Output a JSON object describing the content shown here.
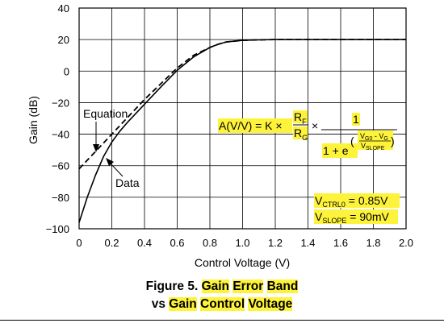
{
  "chart_data": {
    "type": "line",
    "xlabel": "Control Voltage (V)",
    "ylabel": "Gain (dB)",
    "xlim": [
      0,
      2.0
    ],
    "ylim": [
      -100,
      40
    ],
    "xticks": [
      "0",
      "0.2",
      "0.4",
      "0.6",
      "0.8",
      "1.0",
      "1.2",
      "1.4",
      "1.6",
      "1.8",
      "2.0"
    ],
    "yticks": [
      "40",
      "20",
      "0",
      "−20",
      "−40",
      "−60",
      "−80",
      "−100"
    ],
    "grid": true,
    "series": [
      {
        "name": "Equation",
        "style": "dashed",
        "x": [
          0,
          0.1,
          0.2,
          0.3,
          0.4,
          0.5,
          0.6,
          0.7,
          0.8,
          0.85,
          0.9,
          1.0,
          1.1,
          1.2,
          1.3,
          1.5,
          2.0
        ],
        "y": [
          -62,
          -51,
          -40,
          -29,
          -18,
          -8,
          2,
          10,
          15,
          17,
          18.5,
          19.5,
          19.8,
          20,
          20,
          20,
          20
        ]
      },
      {
        "name": "Data",
        "style": "solid",
        "x": [
          0,
          0.05,
          0.1,
          0.15,
          0.2,
          0.25,
          0.3,
          0.4,
          0.5,
          0.6,
          0.7,
          0.8,
          0.85,
          0.9,
          1.0,
          1.1,
          1.2,
          1.3,
          1.5,
          2.0
        ],
        "y": [
          -96,
          -80,
          -66,
          -54,
          -45,
          -38,
          -32,
          -21,
          -10,
          0.5,
          9,
          15,
          17,
          18.5,
          19.5,
          19.8,
          20,
          20,
          20,
          20
        ]
      }
    ],
    "annotations": {
      "equation_label": "Equation",
      "data_label": "Data",
      "formula_lhs": "A(V/V) = K ×",
      "formula_rf": "R",
      "formula_rf_sub": "F",
      "formula_rg": "R",
      "formula_rg_sub": "G",
      "formula_times": "×",
      "formula_one": "1",
      "formula_denominator": "1 + e",
      "formula_exp_num": "V",
      "formula_exp_num_sub": "G0",
      "formula_exp_minus": " - V",
      "formula_exp_num_sub2": "G",
      "formula_exp_den": "V",
      "formula_exp_den_sub": "SLOPE",
      "vctrl_label": "V",
      "vctrl_sub": "CTRL0",
      "vctrl_value": " = 0.85V",
      "vslope_label": "V",
      "vslope_sub": "SLOPE",
      "vslope_value": " = 90mV"
    }
  },
  "caption": {
    "line1_prefix": "Figure 5. ",
    "line1_gain": "Gain",
    "line1_error": "Error",
    "line1_band": "Band",
    "line2_vs": "vs",
    "line2_gain": "Gain",
    "line2_control": "Control",
    "line2_voltage": "Voltage"
  },
  "highlight_color": "#fdf33a"
}
